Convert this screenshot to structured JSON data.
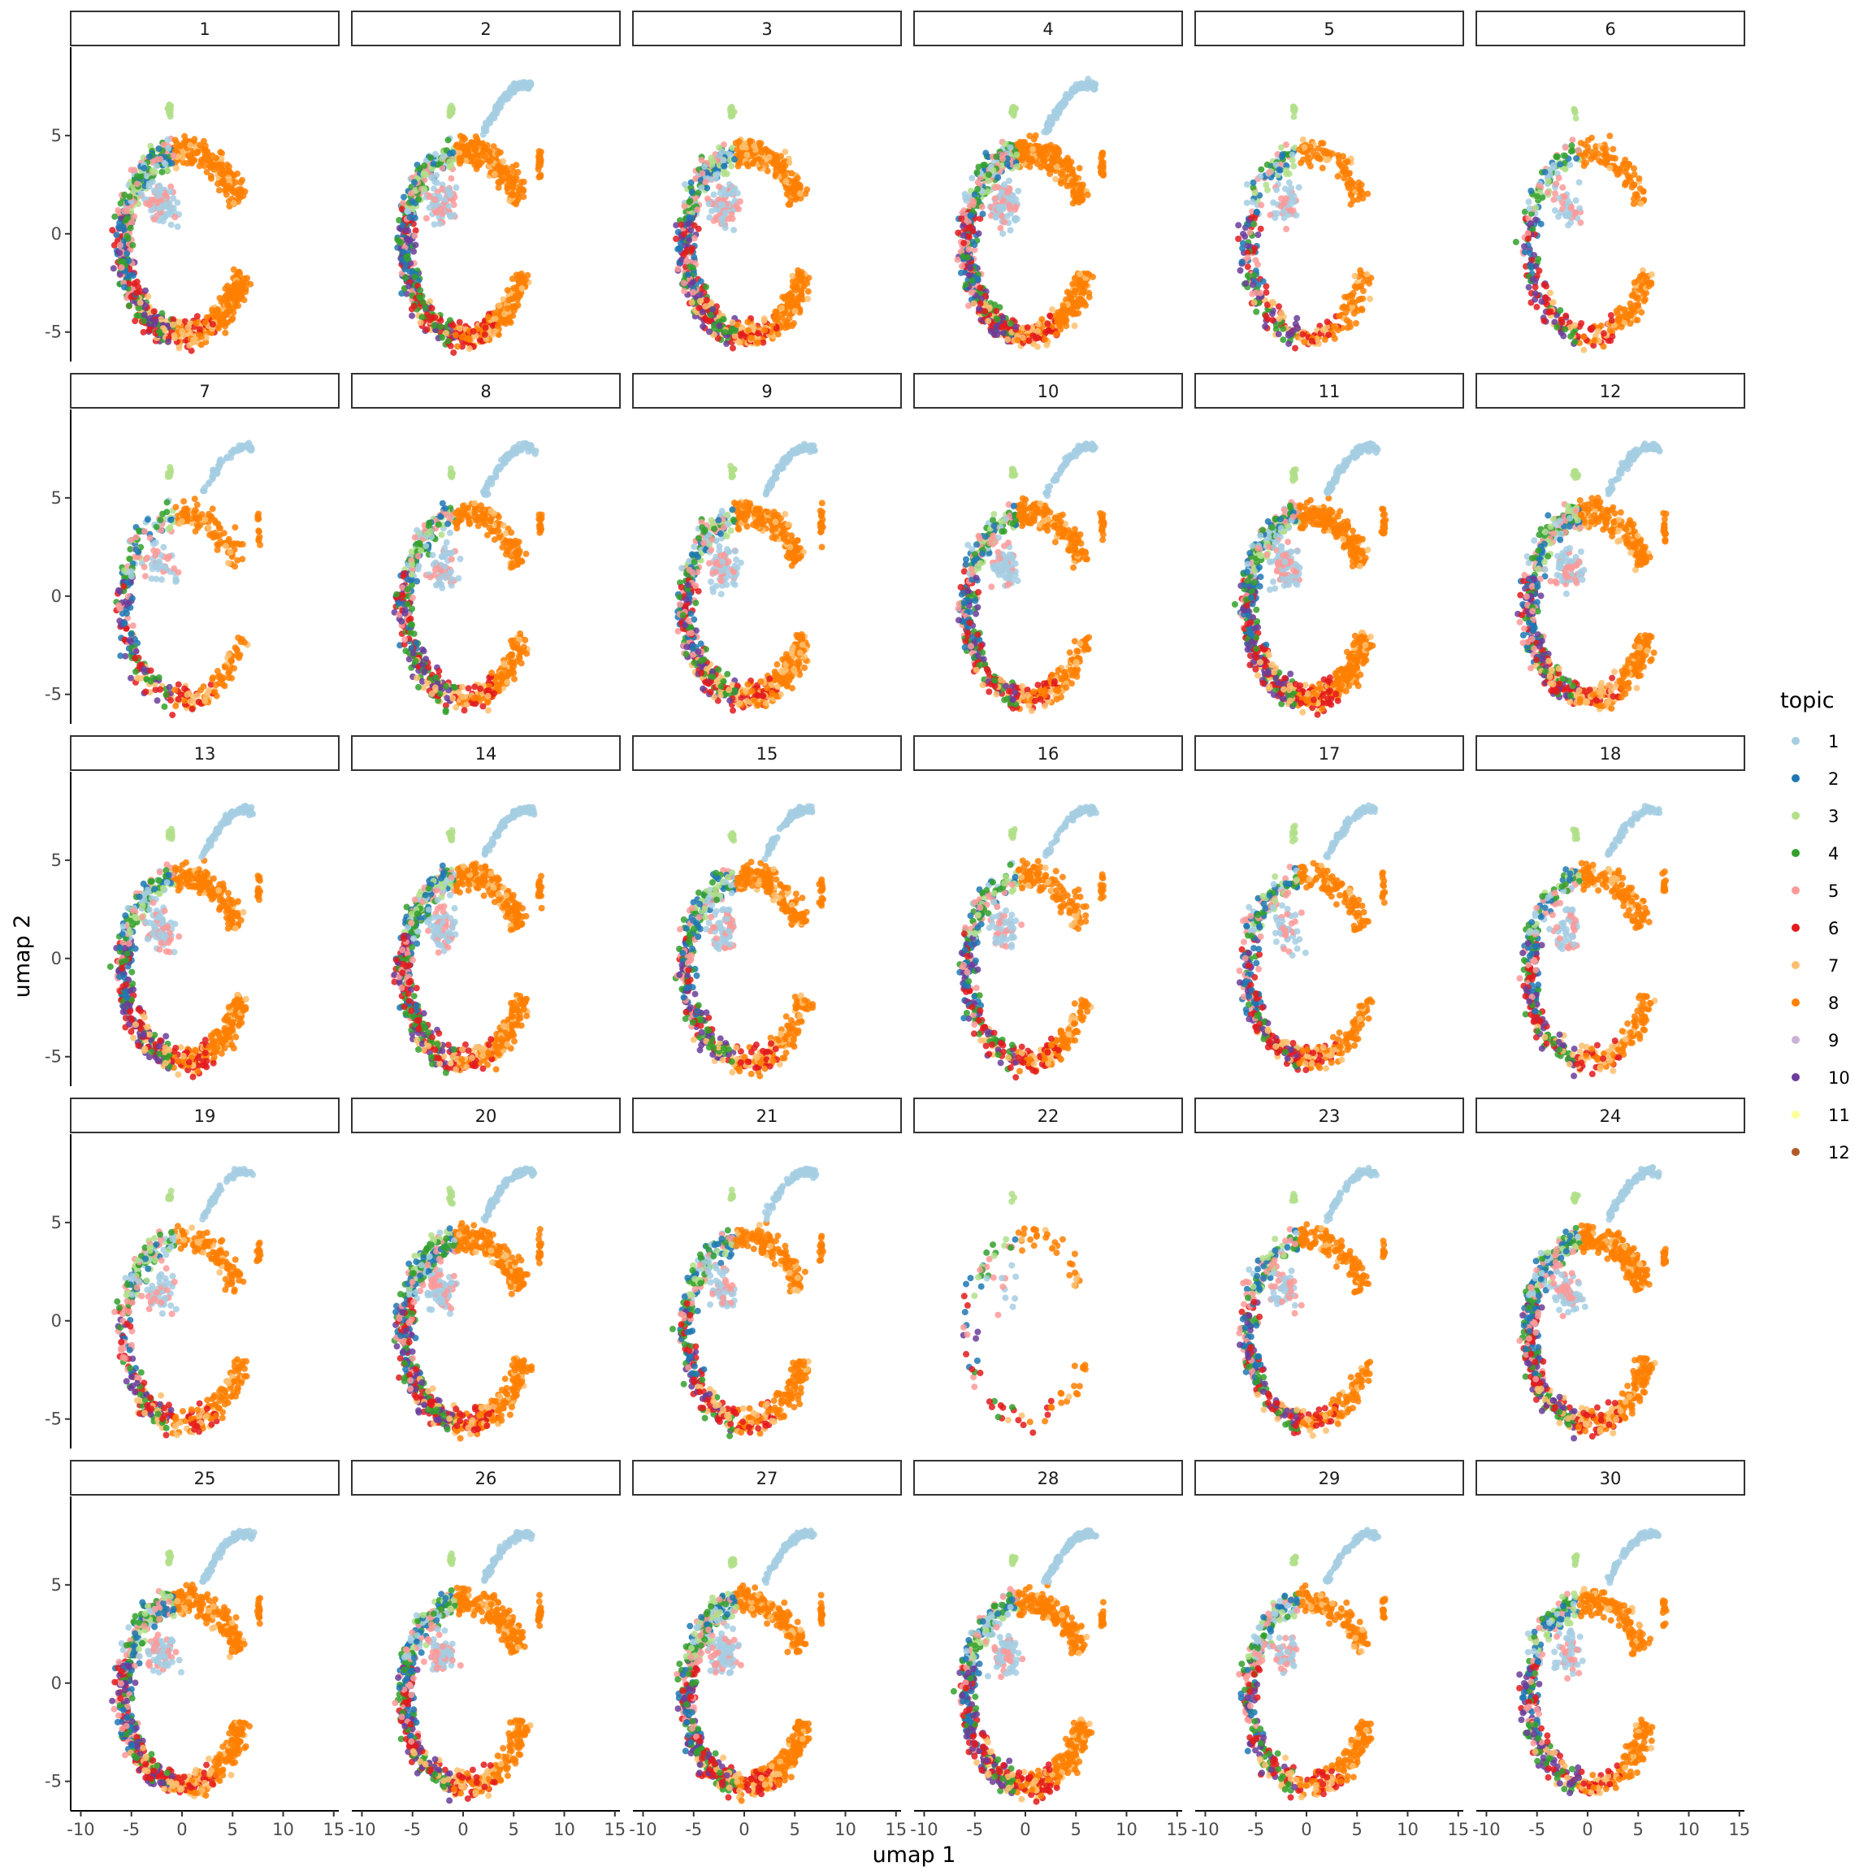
{
  "chart_data": {
    "type": "scatter",
    "title": "",
    "xlabel": "umap 1",
    "ylabel": "umap 2",
    "xlim": [
      -11,
      15.5
    ],
    "ylim": [
      -6.5,
      9.5
    ],
    "x_ticks": [
      -10,
      -5,
      0,
      5,
      10,
      15
    ],
    "x_tick_labels": [
      "-10",
      "-5",
      "0",
      "5",
      "10",
      "15"
    ],
    "y_ticks": [
      -5,
      0,
      5
    ],
    "y_tick_labels": [
      "-5",
      "0",
      "5"
    ],
    "grid": false,
    "facet_layout": {
      "rows": 5,
      "cols": 6
    },
    "panels": [
      "1",
      "2",
      "3",
      "4",
      "5",
      "6",
      "7",
      "8",
      "9",
      "10",
      "11",
      "12",
      "13",
      "14",
      "15",
      "16",
      "17",
      "18",
      "19",
      "20",
      "21",
      "22",
      "23",
      "24",
      "25",
      "26",
      "27",
      "28",
      "29",
      "30"
    ],
    "legend": {
      "title": "topic",
      "placement": "right",
      "entries": [
        {
          "label": "1",
          "color": "#a6cee3"
        },
        {
          "label": "2",
          "color": "#1f78b4"
        },
        {
          "label": "3",
          "color": "#b2df8a"
        },
        {
          "label": "4",
          "color": "#33a02c"
        },
        {
          "label": "5",
          "color": "#fb9a99"
        },
        {
          "label": "6",
          "color": "#e31a1c"
        },
        {
          "label": "7",
          "color": "#fdbf6f"
        },
        {
          "label": "8",
          "color": "#ff7f00"
        },
        {
          "label": "9",
          "color": "#cab2d6"
        },
        {
          "label": "10",
          "color": "#6a3d9a"
        },
        {
          "label": "11",
          "color": "#ffff99"
        },
        {
          "label": "12",
          "color": "#b15928"
        }
      ]
    },
    "panel_density": [
      1.0,
      0.9,
      0.95,
      1.0,
      0.45,
      0.45,
      0.45,
      0.7,
      0.85,
      0.7,
      1.0,
      0.8,
      0.8,
      0.85,
      0.7,
      0.55,
      0.55,
      0.55,
      0.55,
      0.9,
      0.6,
      0.12,
      0.55,
      0.85,
      0.85,
      0.8,
      0.9,
      0.85,
      0.6,
      0.6
    ],
    "panel_has_topic1_arm": [
      false,
      true,
      false,
      true,
      false,
      false,
      true,
      true,
      true,
      true,
      true,
      true,
      true,
      true,
      true,
      true,
      true,
      true,
      true,
      true,
      true,
      false,
      true,
      true,
      true,
      true,
      true,
      true,
      true,
      true
    ]
  }
}
